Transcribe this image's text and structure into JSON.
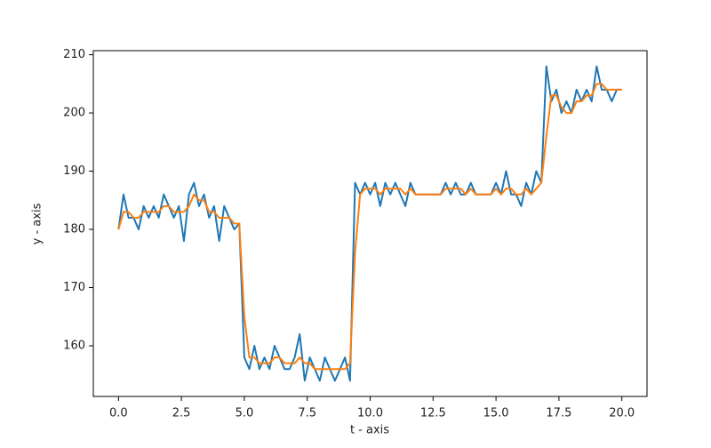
{
  "chart_data": {
    "type": "line",
    "xlabel": "t - axis",
    "ylabel": "y - axis",
    "x": [
      0,
      0.2,
      0.4,
      0.6,
      0.8,
      1,
      1.2,
      1.4,
      1.6,
      1.8,
      2,
      2.2,
      2.4,
      2.6,
      2.8,
      3,
      3.2,
      3.4,
      3.6,
      3.8,
      4,
      4.2,
      4.4,
      4.6,
      4.8,
      5,
      5.2,
      5.4,
      5.6,
      5.8,
      6,
      6.2,
      6.4,
      6.6,
      6.8,
      7,
      7.2,
      7.4,
      7.6,
      7.8,
      8,
      8.2,
      8.4,
      8.6,
      8.8,
      9,
      9.2,
      9.4,
      9.6,
      9.8,
      10,
      10.2,
      10.4,
      10.6,
      10.8,
      11,
      11.2,
      11.4,
      11.6,
      11.8,
      12,
      12.2,
      12.4,
      12.6,
      12.8,
      13,
      13.2,
      13.4,
      13.6,
      13.8,
      14,
      14.2,
      14.4,
      14.6,
      14.8,
      15,
      15.2,
      15.4,
      15.6,
      15.8,
      16,
      16.2,
      16.4,
      16.6,
      16.8,
      17,
      17.2,
      17.4,
      17.6,
      17.8,
      18,
      18.2,
      18.4,
      18.6,
      18.8,
      19,
      19.2,
      19.4,
      19.6,
      19.8,
      20
    ],
    "series": [
      {
        "color": "#1f77b4",
        "values": [
          180,
          186,
          182,
          182,
          180,
          184,
          182,
          184,
          182,
          186,
          184,
          182,
          184,
          178,
          186,
          188,
          184,
          186,
          182,
          184,
          178,
          184,
          182,
          180,
          181,
          158,
          156,
          160,
          156,
          158,
          156,
          160,
          158,
          156,
          156,
          158,
          162,
          154,
          158,
          156,
          154,
          158,
          156,
          154,
          156,
          158,
          154,
          188,
          186,
          188,
          186,
          188,
          184,
          188,
          186,
          188,
          186,
          184,
          188,
          186,
          186,
          186,
          186,
          186,
          186,
          188,
          186,
          188,
          186,
          186,
          188,
          186,
          186,
          186,
          186,
          188,
          186,
          190,
          186,
          186,
          184,
          188,
          186,
          190,
          188,
          208,
          202,
          204,
          200,
          202,
          200,
          204,
          202,
          204,
          202,
          208,
          204,
          204,
          202,
          204,
          204
        ]
      },
      {
        "color": "#ff7f0e",
        "values": [
          180,
          183,
          183,
          182,
          182,
          183,
          183,
          183,
          183,
          184,
          184,
          183,
          183,
          183,
          184,
          186,
          185,
          185,
          183,
          183,
          182,
          182,
          182,
          181,
          181,
          165,
          158,
          158,
          157,
          157,
          157,
          158,
          158,
          157,
          157,
          157,
          158,
          157,
          157,
          156,
          156,
          156,
          156,
          156,
          156,
          156,
          157,
          176,
          186,
          187,
          187,
          187,
          186,
          187,
          187,
          187,
          187,
          186,
          187,
          186,
          186,
          186,
          186,
          186,
          186,
          187,
          187,
          187,
          187,
          186,
          187,
          186,
          186,
          186,
          186,
          187,
          186,
          187,
          187,
          186,
          186,
          187,
          186,
          187,
          188,
          196,
          203,
          203,
          201,
          200,
          200,
          202,
          202,
          203,
          203,
          205,
          205,
          204,
          204,
          204,
          204
        ]
      }
    ],
    "xlim": [
      -1,
      21
    ],
    "ylim": [
      151.3,
      210.7
    ],
    "xticks": [
      {
        "value": 0,
        "label": "0.0"
      },
      {
        "value": 2.5,
        "label": "2.5"
      },
      {
        "value": 5,
        "label": "5.0"
      },
      {
        "value": 7.5,
        "label": "7.5"
      },
      {
        "value": 10,
        "label": "10.0"
      },
      {
        "value": 12.5,
        "label": "12.5"
      },
      {
        "value": 15,
        "label": "15.0"
      },
      {
        "value": 17.5,
        "label": "17.5"
      },
      {
        "value": 20,
        "label": "20.0"
      }
    ],
    "yticks": [
      160,
      170,
      180,
      190,
      200,
      210
    ]
  }
}
